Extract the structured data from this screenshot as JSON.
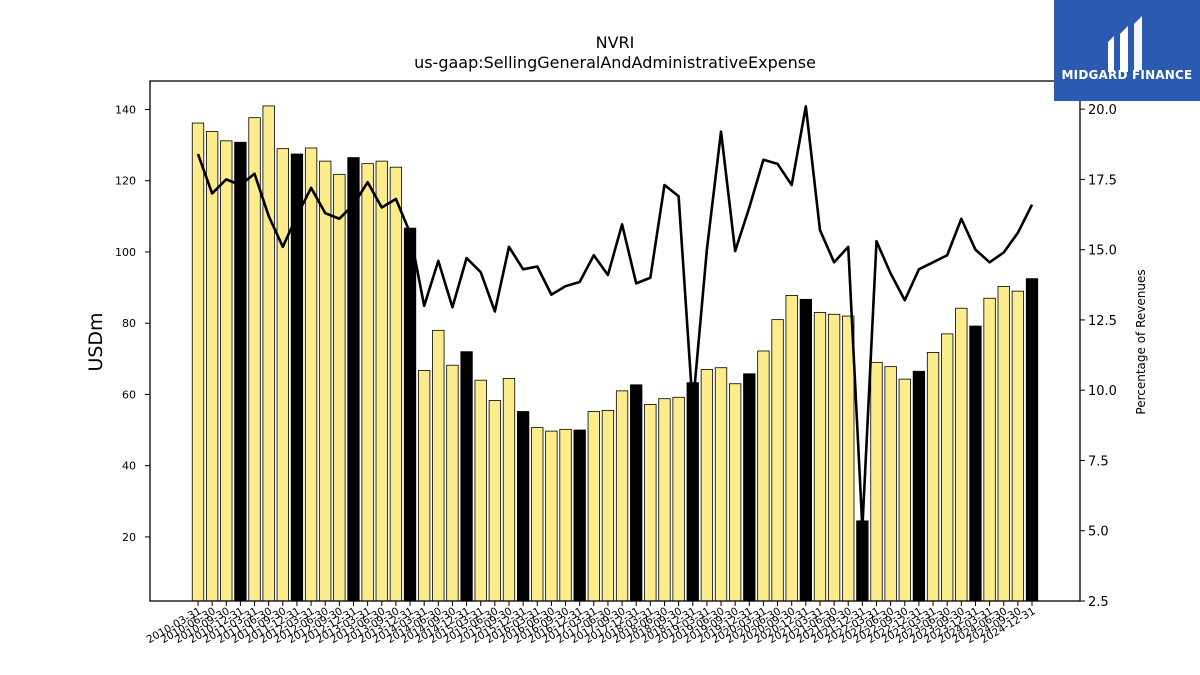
{
  "chart_data": {
    "type": "bar+line",
    "title": "NVRI",
    "subtitle": "us-gaap:SellingGeneralAndAdministrativeExpense",
    "ylabel": "USDm",
    "y2label": "Percentage of Revenues",
    "ylim": [
      2,
      148
    ],
    "y2lim": [
      2.5,
      21.0
    ],
    "yticks": [
      "20",
      "40",
      "60",
      "80",
      "100",
      "120",
      "140"
    ],
    "y2ticks": [
      "2.5",
      "5.0",
      "7.5",
      "10.0",
      "12.5",
      "15.0",
      "17.5",
      "20.0"
    ],
    "categories": [
      "2010-03-31",
      "2010-06-30",
      "2010-09-30",
      "2010-12-31",
      "2011-03-31",
      "2011-06-30",
      "2011-09-30",
      "2011-12-31",
      "2012-03-31",
      "2012-06-30",
      "2012-09-30",
      "2012-12-31",
      "2013-03-31",
      "2013-06-30",
      "2013-09-30",
      "2013-12-31",
      "2014-03-31",
      "2014-06-30",
      "2014-09-30",
      "2014-12-31",
      "2015-03-31",
      "2015-06-30",
      "2015-09-30",
      "2015-12-31",
      "2016-03-31",
      "2016-06-30",
      "2016-09-30",
      "2016-12-31",
      "2017-03-31",
      "2017-06-30",
      "2017-09-30",
      "2017-12-31",
      "2018-03-31",
      "2018-06-30",
      "2018-09-30",
      "2018-12-31",
      "2019-03-31",
      "2019-06-30",
      "2019-09-30",
      "2019-12-31",
      "2020-03-31",
      "2020-06-30",
      "2020-09-30",
      "2020-12-31",
      "2021-03-31",
      "2021-06-30",
      "2021-09-30",
      "2021-12-31",
      "2022-03-31",
      "2022-06-30",
      "2022-09-30",
      "2022-12-31",
      "2023-03-31",
      "2023-06-30",
      "2023-09-30",
      "2023-12-31",
      "2024-03-31",
      "2024-06-30",
      "2024-09-30",
      "2024-12-31"
    ],
    "series": [
      {
        "kind": "bar",
        "values": [
          136.2,
          133.8,
          131.2,
          130.8,
          137.7,
          141.0,
          129.0,
          127.5,
          129.2,
          125.5,
          121.8,
          126.5,
          124.8,
          125.5,
          123.8,
          106.7,
          66.7,
          78.0,
          68.2,
          72.0,
          64.0,
          58.3,
          64.5,
          55.2,
          50.7,
          49.7,
          50.2,
          50.0,
          55.2,
          55.5,
          61.0,
          62.7,
          57.2,
          58.8,
          59.2,
          63.3,
          67.0,
          67.5,
          63.0,
          65.8,
          72.2,
          81.0,
          87.8,
          86.7,
          83.0,
          82.5,
          82.0,
          24.5,
          69.0,
          67.8,
          64.3,
          66.5,
          71.8,
          77.0,
          84.2,
          79.2,
          87.0,
          90.3,
          89.0,
          92.5
        ],
        "highlight": [
          false,
          false,
          false,
          true,
          false,
          false,
          false,
          true,
          false,
          false,
          false,
          true,
          false,
          false,
          false,
          true,
          false,
          false,
          false,
          true,
          false,
          false,
          false,
          true,
          false,
          false,
          false,
          true,
          false,
          false,
          false,
          true,
          false,
          false,
          false,
          true,
          false,
          false,
          false,
          true,
          false,
          false,
          false,
          true,
          false,
          false,
          false,
          true,
          false,
          false,
          false,
          true,
          false,
          false,
          false,
          true,
          false,
          false,
          false,
          true
        ],
        "colors": {
          "normal": "#fdec8b",
          "highlight": "#000000",
          "edge": "#000000"
        }
      },
      {
        "kind": "line",
        "axis": "right",
        "color": "#000000",
        "values": [
          18.4,
          17.0,
          17.5,
          17.3,
          17.7,
          16.2,
          15.1,
          16.2,
          17.2,
          16.3,
          16.1,
          16.6,
          17.4,
          16.5,
          16.8,
          15.6,
          13.0,
          14.6,
          12.95,
          14.7,
          14.2,
          12.8,
          15.1,
          14.3,
          14.4,
          13.4,
          13.7,
          13.85,
          14.8,
          14.1,
          15.9,
          13.8,
          14.0,
          17.3,
          16.9,
          9.4,
          15.0,
          19.2,
          14.95,
          16.5,
          18.2,
          18.05,
          17.3,
          20.1,
          15.7,
          14.55,
          15.1,
          5.1,
          15.3,
          14.15,
          13.2,
          14.3,
          14.55,
          14.8,
          16.1,
          15.0,
          14.55,
          14.9,
          15.6,
          16.6
        ]
      }
    ],
    "grid": false,
    "legend": "none"
  },
  "logo": {
    "name": "MIDGARD FINANCE"
  }
}
